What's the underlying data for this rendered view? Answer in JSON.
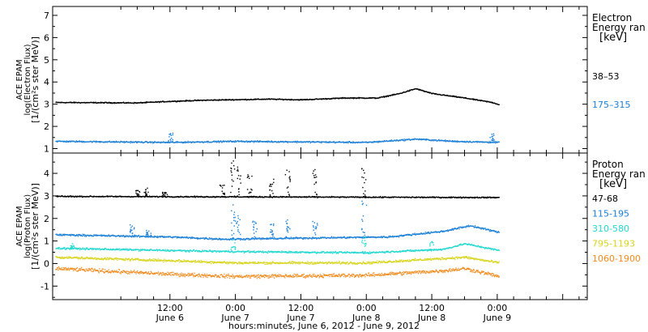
{
  "chart_data": [
    {
      "type": "scatter",
      "panel": "electron",
      "ylabel": [
        "ACE EPAM",
        "log(Electron Flux)",
        "[1/(cm²s ster MeV)]"
      ],
      "ylim": [
        0.8,
        7.4
      ],
      "yticks": [
        1,
        2,
        3,
        4,
        5,
        6,
        7
      ],
      "legend_title": [
        "Electron",
        "Energy ran",
        "[keV]"
      ],
      "legend_placement": "right",
      "series": [
        {
          "name": "38–53",
          "color": "#000000",
          "noise": 0.035,
          "profile": [
            [
              -9.0,
              3.1
            ],
            [
              6.0,
              3.08
            ],
            [
              12.0,
              3.15
            ],
            [
              18.0,
              3.2
            ],
            [
              30.0,
              3.25
            ],
            [
              36.0,
              3.22
            ],
            [
              44.0,
              3.3
            ],
            [
              50.0,
              3.3
            ],
            [
              54.0,
              3.5
            ],
            [
              57.0,
              3.72
            ],
            [
              60.0,
              3.5
            ],
            [
              66.0,
              3.3
            ],
            [
              71.0,
              3.1
            ],
            [
              72.3,
              3.0
            ]
          ]
        },
        {
          "name": "175–315",
          "color": "#1a7fd6",
          "noise": 0.05,
          "profile": [
            [
              -9.0,
              1.35
            ],
            [
              12.0,
              1.3
            ],
            [
              24.0,
              1.35
            ],
            [
              48.0,
              1.3
            ],
            [
              57.0,
              1.45
            ],
            [
              64.0,
              1.35
            ],
            [
              72.3,
              1.3
            ]
          ],
          "spikes": [
            [
              12.0,
              1.75
            ],
            [
              71.0,
              1.7
            ]
          ]
        }
      ]
    },
    {
      "type": "scatter",
      "panel": "proton",
      "ylabel": [
        "ACE EPAM",
        "log(Proton Flux)",
        "[1/(cm²s ster MeV)]"
      ],
      "ylim": [
        -1.6,
        4.9
      ],
      "yticks": [
        -1,
        0,
        1,
        2,
        3,
        4
      ],
      "legend_title": [
        "Proton",
        "Energy ran",
        "[keV]"
      ],
      "legend_placement": "right",
      "series": [
        {
          "name": "47-68",
          "color": "#000000",
          "noise": 0.04,
          "profile": [
            [
              -9.0,
              3.0
            ],
            [
              72.3,
              2.95
            ]
          ],
          "spikes": [
            [
              6.0,
              3.3
            ],
            [
              7.5,
              3.4
            ],
            [
              11.0,
              3.2
            ],
            [
              21.5,
              3.5
            ],
            [
              23.5,
              4.6
            ],
            [
              24.5,
              4.3
            ],
            [
              26.5,
              4.0
            ],
            [
              30.5,
              3.8
            ],
            [
              33.5,
              4.3
            ],
            [
              38.5,
              4.2
            ],
            [
              47.5,
              4.3
            ]
          ]
        },
        {
          "name": "115-195",
          "color": "#1a7fd6",
          "noise": 0.06,
          "profile": [
            [
              -9.0,
              1.3
            ],
            [
              12.0,
              1.2
            ],
            [
              22.0,
              1.1
            ],
            [
              36.0,
              1.15
            ],
            [
              52.0,
              1.2
            ],
            [
              62.0,
              1.45
            ],
            [
              67.0,
              1.7
            ],
            [
              72.3,
              1.4
            ]
          ],
          "spikes": [
            [
              5.0,
              1.8
            ],
            [
              8.0,
              1.5
            ],
            [
              23.5,
              2.7
            ],
            [
              24.5,
              2.3
            ],
            [
              27.5,
              1.9
            ],
            [
              30.5,
              1.8
            ],
            [
              33.5,
              2.0
            ],
            [
              38.5,
              1.9
            ],
            [
              47.5,
              2.9
            ]
          ]
        },
        {
          "name": "310-580",
          "color": "#22d8d0",
          "noise": 0.06,
          "profile": [
            [
              -9.0,
              0.7
            ],
            [
              12.0,
              0.6
            ],
            [
              24.0,
              0.55
            ],
            [
              48.0,
              0.5
            ],
            [
              62.0,
              0.65
            ],
            [
              66.0,
              0.9
            ],
            [
              72.3,
              0.6
            ]
          ],
          "spikes": [
            [
              -6.0,
              0.9
            ],
            [
              23.5,
              1.1
            ],
            [
              47.5,
              1.2
            ],
            [
              60.0,
              1.0
            ]
          ]
        },
        {
          "name": "795-1193",
          "color": "#d7d41c",
          "noise": 0.08,
          "profile": [
            [
              -9.0,
              0.3
            ],
            [
              12.0,
              0.15
            ],
            [
              24.0,
              0.05
            ],
            [
              48.0,
              0.05
            ],
            [
              66.0,
              0.3
            ],
            [
              72.3,
              0.05
            ]
          ]
        },
        {
          "name": "1060-1900",
          "color": "#f08a1c",
          "noise": 0.12,
          "profile": [
            [
              -9.0,
              -0.2
            ],
            [
              12.0,
              -0.45
            ],
            [
              24.0,
              -0.55
            ],
            [
              48.0,
              -0.5
            ],
            [
              62.0,
              -0.3
            ],
            [
              66.0,
              -0.2
            ],
            [
              72.3,
              -0.55
            ]
          ]
        }
      ]
    }
  ],
  "x_axis": {
    "label": "hours:minutes,  June  6, 2012 - June  9, 2012",
    "xlim": [
      -9.5,
      88.5
    ],
    "ticks": [
      {
        "t": 12,
        "time": "12:00",
        "day": "June 6"
      },
      {
        "t": 24,
        "time": "0:00",
        "day": "June 7"
      },
      {
        "t": 36,
        "time": "12:00",
        "day": "June 7"
      },
      {
        "t": 48,
        "time": "0:00",
        "day": "June 8"
      },
      {
        "t": 60,
        "time": "12:00",
        "day": "June 8"
      },
      {
        "t": 72,
        "time": "0:00",
        "day": "June 9"
      }
    ],
    "minor_tick_hours": 3
  }
}
